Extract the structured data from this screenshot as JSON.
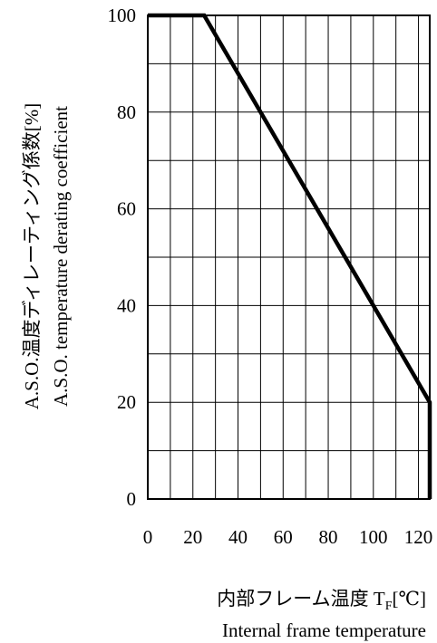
{
  "chart_data": {
    "type": "line",
    "series": [
      {
        "x": [
          0,
          25,
          125,
          125
        ],
        "y": [
          100,
          100,
          20,
          0
        ]
      }
    ],
    "xlim": [
      0,
      125
    ],
    "ylim": [
      0,
      100
    ],
    "x_ticks": [
      0,
      20,
      40,
      60,
      80,
      100,
      120
    ],
    "y_ticks": [
      0,
      20,
      40,
      60,
      80,
      100
    ],
    "x_tick_labels": [
      "0",
      "20",
      "40",
      "60",
      "80",
      "100",
      "120"
    ],
    "y_tick_labels": [
      "0",
      "20",
      "40",
      "60",
      "80",
      "100"
    ],
    "grid": true,
    "xlabel_line1": "内部フレーム温度 T",
    "xlabel_sub": "F",
    "xlabel_unit": "[℃]",
    "xlabel_line2": "Internal frame temperature",
    "ylabel_line1": "A.S.O.温度ディレーティング係数[%]",
    "ylabel_line2": "A.S.O. temperature derating coefficient",
    "colors": {
      "line": "#000000",
      "grid": "#000000",
      "frame": "#000000"
    }
  }
}
